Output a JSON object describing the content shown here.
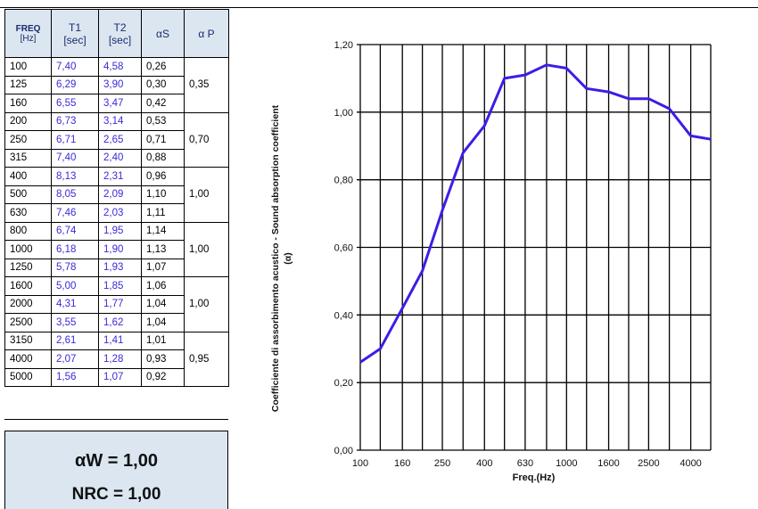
{
  "table": {
    "headers": {
      "freq": "FREQ",
      "freq_unit": "[Hz]",
      "t1": "T1",
      "t1_unit": "[sec]",
      "t2": "T2",
      "t2_unit": "[sec]",
      "alpha_s": "αS",
      "alpha_p": "α P"
    },
    "rows": [
      {
        "freq": "100",
        "t1": "7,40",
        "t2": "4,58",
        "as": "0,26"
      },
      {
        "freq": "125",
        "t1": "6,29",
        "t2": "3,90",
        "as": "0,30"
      },
      {
        "freq": "160",
        "t1": "6,55",
        "t2": "3,47",
        "as": "0,42"
      },
      {
        "freq": "200",
        "t1": "6,73",
        "t2": "3,14",
        "as": "0,53"
      },
      {
        "freq": "250",
        "t1": "6,71",
        "t2": "2,65",
        "as": "0,71"
      },
      {
        "freq": "315",
        "t1": "7,40",
        "t2": "2,40",
        "as": "0,88"
      },
      {
        "freq": "400",
        "t1": "8,13",
        "t2": "2,31",
        "as": "0,96"
      },
      {
        "freq": "500",
        "t1": "8,05",
        "t2": "2,09",
        "as": "1,10"
      },
      {
        "freq": "630",
        "t1": "7,46",
        "t2": "2,03",
        "as": "1,11"
      },
      {
        "freq": "800",
        "t1": "6,74",
        "t2": "1,95",
        "as": "1,14"
      },
      {
        "freq": "1000",
        "t1": "6,18",
        "t2": "1,90",
        "as": "1,13"
      },
      {
        "freq": "1250",
        "t1": "5,78",
        "t2": "1,93",
        "as": "1,07"
      },
      {
        "freq": "1600",
        "t1": "5,00",
        "t2": "1,85",
        "as": "1,06"
      },
      {
        "freq": "2000",
        "t1": "4,31",
        "t2": "1,77",
        "as": "1,04"
      },
      {
        "freq": "2500",
        "t1": "3,55",
        "t2": "1,62",
        "as": "1,04"
      },
      {
        "freq": "3150",
        "t1": "2,61",
        "t2": "1,41",
        "as": "1,01"
      },
      {
        "freq": "4000",
        "t1": "2,07",
        "t2": "1,28",
        "as": "0,93"
      },
      {
        "freq": "5000",
        "t1": "1,56",
        "t2": "1,07",
        "as": "0,92"
      }
    ],
    "alpha_p": [
      "0,35",
      "0,70",
      "1,00",
      "1,00",
      "1,00",
      "0,95"
    ]
  },
  "summary": {
    "alpha_w": "αW = 1,00",
    "nrc": "NRC = 1,00"
  },
  "chart_data": {
    "type": "line",
    "ylabel": "Coefficiente di assorbimento acustico - Sound absorption coefficient",
    "ylabel_unit": "(α)",
    "xlabel": "Freq.(Hz)",
    "ylim": [
      0,
      1.2
    ],
    "yticks": [
      "0,00",
      "0,20",
      "0,40",
      "0,60",
      "0,80",
      "1,00",
      "1,20"
    ],
    "xticks": [
      "100",
      "160",
      "250",
      "400",
      "630",
      "1000",
      "1600",
      "2500",
      "4000"
    ],
    "grid": true,
    "line_color": "#3a1ee6",
    "series": [
      {
        "x": [
          100,
          125,
          160,
          200,
          250,
          315,
          400,
          500,
          630,
          800,
          1000,
          1250,
          1600,
          2000,
          2500,
          3150,
          4000,
          5000
        ],
        "values": [
          0.26,
          0.3,
          0.42,
          0.53,
          0.71,
          0.88,
          0.96,
          1.1,
          1.11,
          1.14,
          1.13,
          1.07,
          1.06,
          1.04,
          1.04,
          1.01,
          0.93,
          0.92
        ]
      }
    ]
  }
}
